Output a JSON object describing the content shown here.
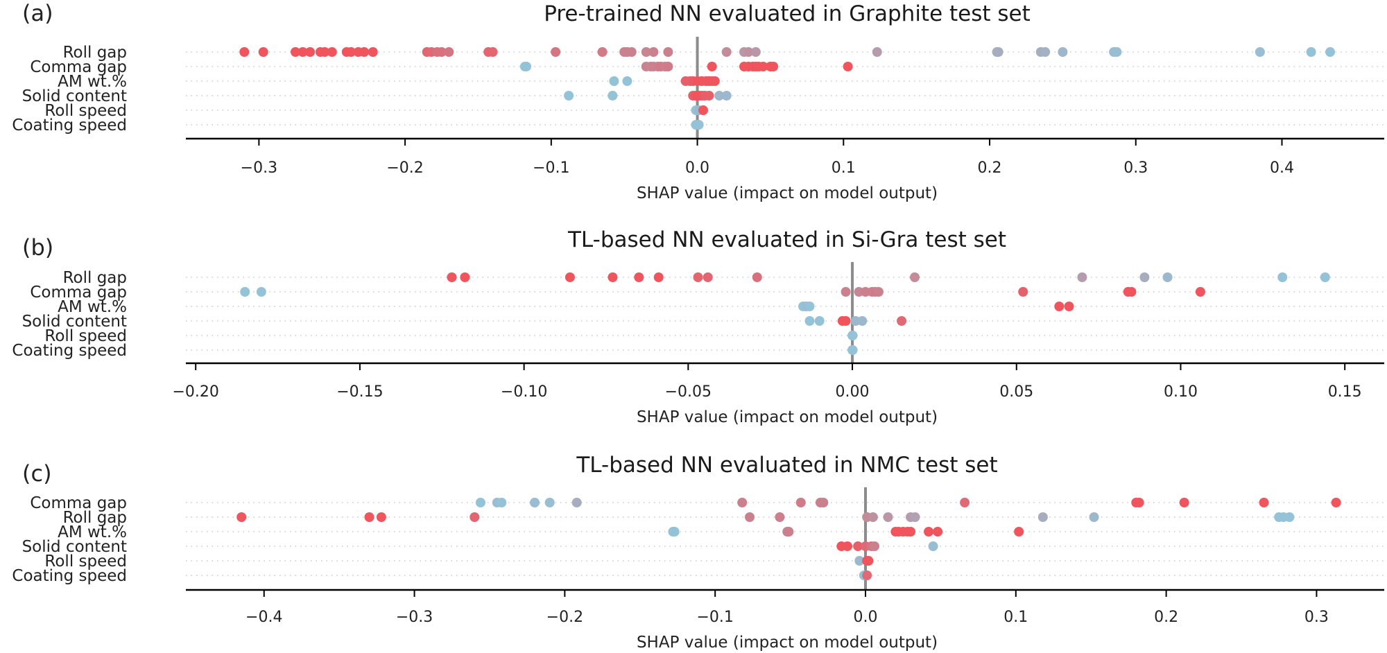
{
  "figure": {
    "xlabel": "SHAP value (impact on model output)"
  },
  "colors": {
    "high": "#f0545c",
    "low": "#94c3d8",
    "zero_line": "#8c8c8c"
  },
  "chart_data": [
    {
      "type": "scatter",
      "panel": "(a)",
      "title": "Pre-trained NN evaluated in Graphite test set",
      "xlabel": "SHAP value (impact on model output)",
      "xlim": [
        -0.35,
        0.47
      ],
      "xticks": [
        -0.3,
        -0.2,
        -0.1,
        0.0,
        0.1,
        0.2,
        0.3,
        0.4
      ],
      "xtick_labels": [
        "−0.3",
        "−0.2",
        "−0.1",
        "0.0",
        "0.1",
        "0.2",
        "0.3",
        "0.4"
      ],
      "features": [
        {
          "name": "Roll gap",
          "points": [
            [
              -0.31,
              1
            ],
            [
              -0.297,
              1
            ],
            [
              -0.275,
              1
            ],
            [
              -0.27,
              1
            ],
            [
              -0.265,
              1
            ],
            [
              -0.258,
              1
            ],
            [
              -0.255,
              1
            ],
            [
              -0.25,
              1
            ],
            [
              -0.24,
              1
            ],
            [
              -0.237,
              1
            ],
            [
              -0.232,
              1
            ],
            [
              -0.228,
              1
            ],
            [
              -0.222,
              1
            ],
            [
              -0.185,
              0.85
            ],
            [
              -0.182,
              0.8
            ],
            [
              -0.178,
              0.75
            ],
            [
              -0.175,
              0.75
            ],
            [
              -0.17,
              0.7
            ],
            [
              -0.143,
              0.85
            ],
            [
              -0.14,
              0.85
            ],
            [
              -0.097,
              0.7
            ],
            [
              -0.065,
              0.65
            ],
            [
              -0.05,
              0.6
            ],
            [
              -0.048,
              0.6
            ],
            [
              -0.045,
              0.6
            ],
            [
              -0.035,
              0.55
            ],
            [
              -0.03,
              0.6
            ],
            [
              -0.02,
              0.6
            ],
            [
              0.02,
              0.5
            ],
            [
              0.032,
              0.4
            ],
            [
              0.035,
              0.45
            ],
            [
              0.04,
              0.4
            ],
            [
              0.123,
              0.35
            ],
            [
              0.205,
              0.2
            ],
            [
              0.206,
              0.2
            ],
            [
              0.235,
              0.2
            ],
            [
              0.238,
              0.15
            ],
            [
              0.25,
              0.1
            ],
            [
              0.285,
              0.05
            ],
            [
              0.287,
              0.05
            ],
            [
              0.385,
              0.05
            ],
            [
              0.42,
              0.0
            ],
            [
              0.433,
              0.0
            ]
          ]
        },
        {
          "name": "Comma gap",
          "points": [
            [
              -0.117,
              0.0
            ],
            [
              -0.118,
              0.0
            ],
            [
              -0.035,
              0.6
            ],
            [
              -0.032,
              0.55
            ],
            [
              -0.03,
              0.6
            ],
            [
              -0.027,
              0.6
            ],
            [
              -0.025,
              0.65
            ],
            [
              -0.022,
              0.6
            ],
            [
              -0.02,
              0.65
            ],
            [
              0.01,
              1
            ],
            [
              0.032,
              1
            ],
            [
              0.035,
              1
            ],
            [
              0.038,
              1
            ],
            [
              0.04,
              1
            ],
            [
              0.042,
              1
            ],
            [
              0.045,
              1
            ],
            [
              0.05,
              1
            ],
            [
              0.052,
              1
            ],
            [
              0.103,
              1
            ]
          ]
        },
        {
          "name": "AM wt.%",
          "points": [
            [
              -0.057,
              0.0
            ],
            [
              -0.048,
              0.0
            ],
            [
              -0.008,
              0.9
            ],
            [
              -0.005,
              0.9
            ],
            [
              -0.003,
              0.95
            ],
            [
              0.0,
              1
            ],
            [
              0.003,
              1
            ],
            [
              0.006,
              1
            ],
            [
              0.008,
              1
            ],
            [
              0.01,
              1
            ],
            [
              0.012,
              1
            ]
          ]
        },
        {
          "name": "Solid content",
          "points": [
            [
              -0.088,
              0.0
            ],
            [
              -0.058,
              0.0
            ],
            [
              -0.003,
              0.9
            ],
            [
              -0.001,
              1
            ],
            [
              0.001,
              1
            ],
            [
              0.003,
              1
            ],
            [
              0.005,
              0.9
            ],
            [
              0.008,
              0.9
            ],
            [
              0.015,
              0.1
            ],
            [
              0.02,
              0.1
            ]
          ]
        },
        {
          "name": "Roll speed",
          "points": [
            [
              -0.001,
              0.0
            ],
            [
              0.0,
              0.0
            ],
            [
              0.001,
              0.1
            ],
            [
              0.004,
              1
            ]
          ]
        },
        {
          "name": "Coating speed",
          "points": [
            [
              -0.001,
              0.0
            ],
            [
              0.0,
              0.0
            ],
            [
              0.001,
              0.0
            ]
          ]
        }
      ]
    },
    {
      "type": "scatter",
      "panel": "(b)",
      "title": "TL-based NN evaluated in Si-Gra test set",
      "xlabel": "SHAP value (impact on model output)",
      "xlim": [
        -0.203,
        0.162
      ],
      "xticks": [
        -0.2,
        -0.15,
        -0.1,
        -0.05,
        0.0,
        0.05,
        0.1,
        0.15
      ],
      "xtick_labels": [
        "−0.20",
        "−0.15",
        "−0.10",
        "−0.05",
        "0.00",
        "0.05",
        "0.10",
        "0.15"
      ],
      "features": [
        {
          "name": "Roll gap",
          "points": [
            [
              -0.122,
              1
            ],
            [
              -0.118,
              1
            ],
            [
              -0.086,
              1
            ],
            [
              -0.073,
              1
            ],
            [
              -0.065,
              1
            ],
            [
              -0.059,
              1
            ],
            [
              -0.047,
              0.85
            ],
            [
              -0.044,
              0.85
            ],
            [
              -0.029,
              0.75
            ],
            [
              0.019,
              0.5
            ],
            [
              0.07,
              0.35
            ],
            [
              0.089,
              0.2
            ],
            [
              0.096,
              0.1
            ],
            [
              0.131,
              0.0
            ],
            [
              0.144,
              0.0
            ]
          ]
        },
        {
          "name": "Comma gap",
          "points": [
            [
              -0.185,
              0.0
            ],
            [
              -0.18,
              0.0
            ],
            [
              -0.002,
              0.6
            ],
            [
              0.002,
              0.55
            ],
            [
              0.004,
              0.6
            ],
            [
              0.006,
              0.6
            ],
            [
              0.007,
              0.65
            ],
            [
              0.008,
              0.6
            ],
            [
              0.052,
              0.9
            ],
            [
              0.084,
              1
            ],
            [
              0.085,
              1
            ],
            [
              0.106,
              1
            ]
          ]
        },
        {
          "name": "AM wt.%",
          "points": [
            [
              -0.015,
              0.0
            ],
            [
              -0.014,
              0.05
            ],
            [
              -0.013,
              0.0
            ],
            [
              0.063,
              1
            ],
            [
              0.066,
              1
            ]
          ]
        },
        {
          "name": "Solid content",
          "points": [
            [
              -0.013,
              0.0
            ],
            [
              -0.01,
              0.0
            ],
            [
              -0.003,
              1
            ],
            [
              -0.002,
              1
            ],
            [
              0.001,
              0.1
            ],
            [
              0.003,
              0.1
            ],
            [
              0.015,
              0.8
            ]
          ]
        },
        {
          "name": "Roll speed",
          "points": [
            [
              0.0,
              0.0
            ],
            [
              0.0001,
              0.0
            ]
          ]
        },
        {
          "name": "Coating speed",
          "points": [
            [
              0.0,
              0.0
            ],
            [
              0.0001,
              0.0
            ]
          ]
        }
      ]
    },
    {
      "type": "scatter",
      "panel": "(c)",
      "title": "TL-based NN evaluated in NMC test set",
      "xlabel": "SHAP value (impact on model output)",
      "xlim": [
        -0.452,
        0.345
      ],
      "xticks": [
        -0.4,
        -0.3,
        -0.2,
        -0.1,
        0.0,
        0.1,
        0.2,
        0.3
      ],
      "xtick_labels": [
        "−0.4",
        "−0.3",
        "−0.2",
        "−0.1",
        "0.0",
        "0.1",
        "0.2",
        "0.3"
      ],
      "features": [
        {
          "name": "Comma gap",
          "points": [
            [
              -0.256,
              0.0
            ],
            [
              -0.245,
              0.05
            ],
            [
              -0.242,
              0.0
            ],
            [
              -0.22,
              0.05
            ],
            [
              -0.21,
              0.05
            ],
            [
              -0.192,
              0.2
            ],
            [
              -0.082,
              0.6
            ],
            [
              -0.043,
              0.65
            ],
            [
              -0.03,
              0.6
            ],
            [
              -0.028,
              0.6
            ],
            [
              0.066,
              0.8
            ],
            [
              0.18,
              1
            ],
            [
              0.182,
              1
            ],
            [
              0.212,
              1
            ],
            [
              0.265,
              1
            ],
            [
              0.313,
              1
            ]
          ]
        },
        {
          "name": "Roll gap",
          "points": [
            [
              -0.415,
              1
            ],
            [
              -0.33,
              1
            ],
            [
              -0.322,
              1
            ],
            [
              -0.26,
              0.85
            ],
            [
              -0.077,
              0.6
            ],
            [
              -0.057,
              0.6
            ],
            [
              0.001,
              0.5
            ],
            [
              0.005,
              0.45
            ],
            [
              0.015,
              0.4
            ],
            [
              0.03,
              0.35
            ],
            [
              0.033,
              0.3
            ],
            [
              0.118,
              0.2
            ],
            [
              0.152,
              0.1
            ],
            [
              0.275,
              0.0
            ],
            [
              0.278,
              0.0
            ],
            [
              0.282,
              0.0
            ]
          ]
        },
        {
          "name": "AM wt.%",
          "points": [
            [
              -0.128,
              0.0
            ],
            [
              -0.127,
              0.0
            ],
            [
              -0.052,
              0.6
            ],
            [
              -0.051,
              0.6
            ],
            [
              0.02,
              1
            ],
            [
              0.022,
              1
            ],
            [
              0.025,
              1
            ],
            [
              0.028,
              1
            ],
            [
              0.03,
              1
            ],
            [
              0.042,
              1
            ],
            [
              0.048,
              1
            ],
            [
              0.102,
              1
            ]
          ]
        },
        {
          "name": "Solid content",
          "points": [
            [
              -0.016,
              1
            ],
            [
              -0.012,
              1
            ],
            [
              -0.005,
              0.9
            ],
            [
              0.0,
              0.8
            ],
            [
              0.004,
              0.7
            ],
            [
              0.006,
              0.6
            ],
            [
              0.045,
              0.05
            ]
          ]
        },
        {
          "name": "Roll speed",
          "points": [
            [
              -0.004,
              0.1
            ],
            [
              0.001,
              1
            ],
            [
              0.002,
              1
            ]
          ]
        },
        {
          "name": "Coating speed",
          "points": [
            [
              -0.001,
              0.0
            ],
            [
              0.001,
              0.8
            ]
          ]
        }
      ]
    }
  ]
}
